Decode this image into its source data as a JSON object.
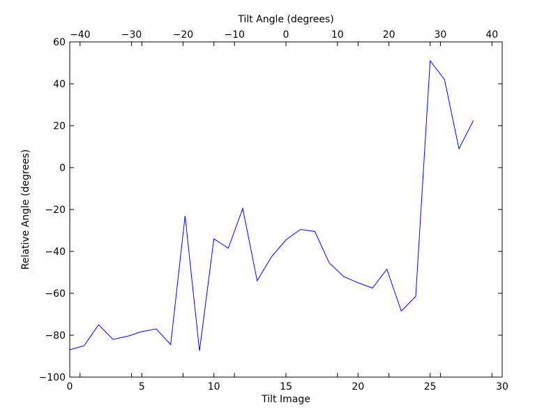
{
  "chart_data": {
    "type": "line",
    "xlabel": "Tilt Image",
    "ylabel": "Relative Angle (degrees)",
    "top_xlabel": "Tilt Angle (degrees)",
    "xlim": [
      0,
      30
    ],
    "ylim": [
      -100,
      60
    ],
    "top_xlim": [
      -42,
      42
    ],
    "x_ticks": [
      0,
      5,
      10,
      15,
      20,
      25,
      30
    ],
    "y_ticks": [
      -100,
      -80,
      -60,
      -40,
      -20,
      0,
      20,
      40,
      60
    ],
    "top_x_ticks": [
      -40,
      -30,
      -20,
      -10,
      0,
      10,
      20,
      30,
      40
    ],
    "x_tick_labels": [
      "0",
      "5",
      "10",
      "15",
      "20",
      "25",
      "30"
    ],
    "y_tick_labels": [
      "−100",
      "−80",
      "−60",
      "−40",
      "−20",
      "0",
      "20",
      "40",
      "60"
    ],
    "top_x_tick_labels": [
      "−40",
      "−30",
      "−20",
      "−10",
      "0",
      "10",
      "20",
      "30",
      "40"
    ],
    "grid": false,
    "line_color": "#0000ff",
    "series": [
      {
        "x": [
          0,
          1,
          2,
          3,
          4,
          5,
          6,
          7,
          8,
          9,
          10,
          11,
          12,
          13,
          14,
          15,
          16,
          17,
          18,
          19,
          20,
          21,
          22,
          23,
          24,
          25,
          26,
          27,
          28
        ],
        "values": [
          -87,
          -85,
          -75,
          -82,
          -80.5,
          -78.3,
          -77,
          -84.5,
          -23,
          -87.5,
          -34,
          -38.5,
          -19.5,
          -54,
          -42.5,
          -34.5,
          -29.5,
          -30.5,
          -45.5,
          -52,
          -55,
          -57.5,
          -48.5,
          -68.5,
          -61.5,
          51,
          42,
          9,
          22.5
        ]
      }
    ]
  }
}
